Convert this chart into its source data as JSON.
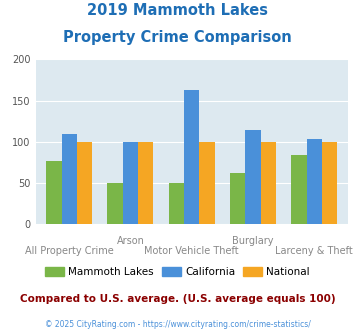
{
  "title_line1": "2019 Mammoth Lakes",
  "title_line2": "Property Crime Comparison",
  "title_color": "#1e6eb5",
  "mammoth_lakes": [
    77,
    50,
    50,
    62,
    84
  ],
  "california": [
    110,
    100,
    163,
    114,
    103
  ],
  "national": [
    100,
    100,
    100,
    100,
    100
  ],
  "mammoth_color": "#7ab648",
  "california_color": "#4a90d9",
  "national_color": "#f5a623",
  "ylim": [
    0,
    200
  ],
  "yticks": [
    0,
    50,
    100,
    150,
    200
  ],
  "plot_bg": "#dde9f0",
  "legend_labels": [
    "Mammoth Lakes",
    "California",
    "National"
  ],
  "footnote": "Compared to U.S. average. (U.S. average equals 100)",
  "footnote_color": "#8b0000",
  "copyright": "© 2025 CityRating.com - https://www.cityrating.com/crime-statistics/",
  "copyright_color": "#4a90d9",
  "x_top_labels": [
    [
      "Arson",
      1
    ],
    [
      "Burglary",
      3
    ]
  ],
  "x_bot_labels": [
    [
      "All Property Crime",
      0
    ],
    [
      "Motor Vehicle Theft",
      2
    ],
    [
      "Larceny & Theft",
      4
    ]
  ]
}
